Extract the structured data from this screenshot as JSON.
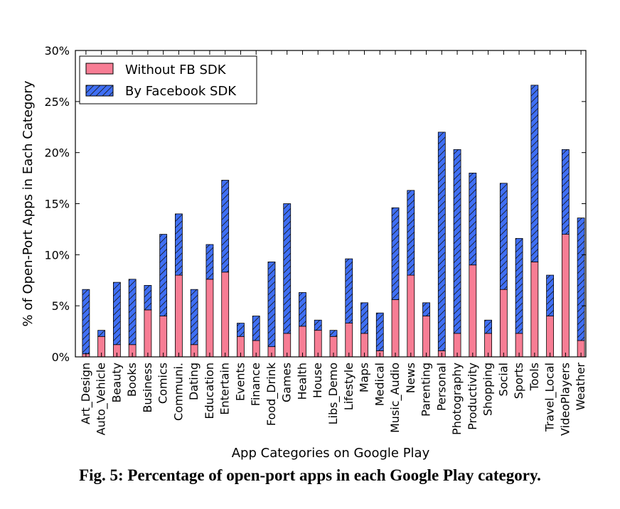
{
  "chart_data": {
    "type": "bar",
    "stacked": true,
    "xlabel": "App Categories on Google Play",
    "ylabel": "% of Open-Port Apps in Each Category",
    "ylim": [
      0,
      30
    ],
    "yticks": [
      "0%",
      "5%",
      "10%",
      "15%",
      "20%",
      "25%",
      "30%"
    ],
    "legend_position": "top-left",
    "categories": [
      "Art_Design",
      "Auto_Vehicle",
      "Beauty",
      "Books",
      "Business",
      "Comics",
      "Communi.",
      "Dating",
      "Education",
      "Entertain",
      "Events",
      "Finance",
      "Food_Drink",
      "Games",
      "Health",
      "House",
      "Libs_Demo",
      "Lifestyle",
      "Maps",
      "Medical",
      "Music_Audio",
      "News",
      "Parenting",
      "Personal",
      "Photography",
      "Productivity",
      "Shopping",
      "Social",
      "Sports",
      "Tools",
      "Travel_Local",
      "VideoPlayers",
      "Weather"
    ],
    "series": [
      {
        "name": "Without FB SDK",
        "color": "#f77d94",
        "pattern": "solid",
        "values": [
          0.3,
          2.0,
          1.2,
          1.2,
          4.6,
          4.0,
          8.0,
          1.2,
          7.6,
          8.3,
          2.0,
          1.6,
          1.0,
          2.3,
          3.0,
          2.6,
          2.0,
          3.3,
          2.3,
          0.6,
          5.6,
          8.0,
          4.0,
          0.6,
          2.3,
          9.0,
          2.3,
          6.6,
          2.3,
          9.3,
          4.0,
          12.0,
          1.6
        ]
      },
      {
        "name": "By Facebook SDK",
        "color": "#3f6ff5",
        "pattern": "hatch",
        "values": [
          6.3,
          0.6,
          6.1,
          6.4,
          2.4,
          8.0,
          6.0,
          5.4,
          3.4,
          9.0,
          1.3,
          2.4,
          8.3,
          12.7,
          3.3,
          1.0,
          0.6,
          6.3,
          3.0,
          3.7,
          9.0,
          8.3,
          1.3,
          21.4,
          18.0,
          9.0,
          1.3,
          10.4,
          9.3,
          17.3,
          4.0,
          8.3,
          12.0
        ]
      }
    ]
  },
  "caption": "Fig. 5: Percentage of open-port apps in each Google Play category."
}
